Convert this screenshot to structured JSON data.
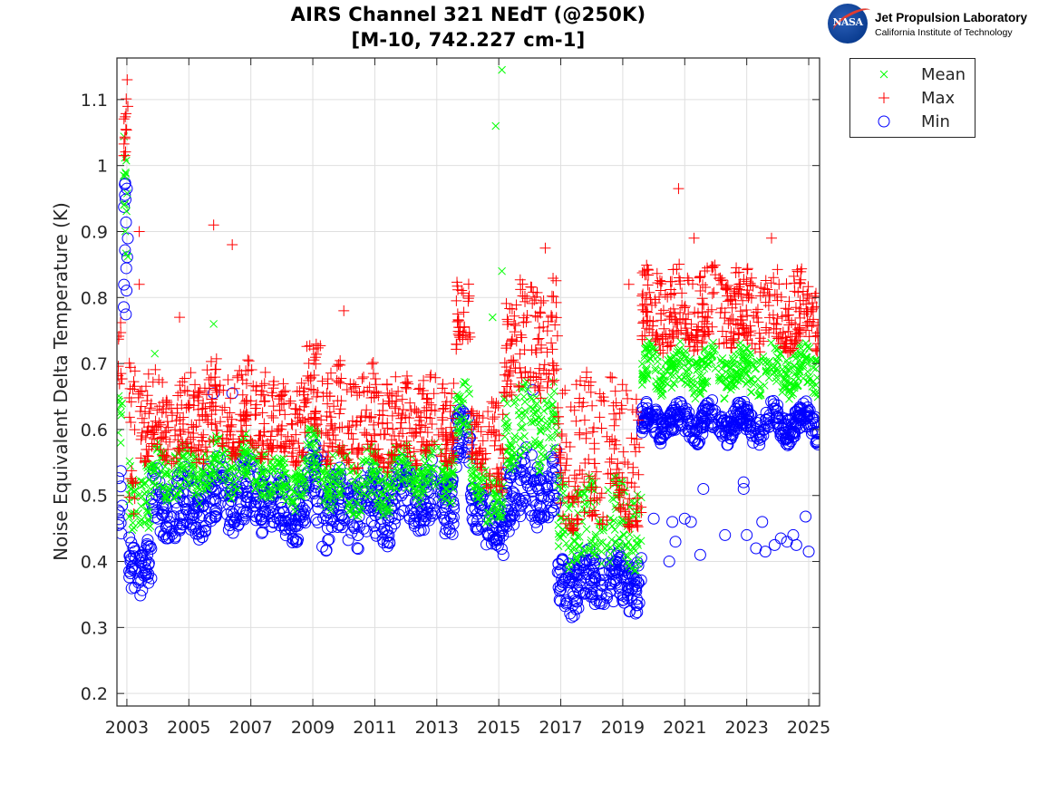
{
  "chart_data": {
    "type": "scatter",
    "title": "AIRS Channel 321 NEdT (@250K)",
    "subtitle": "[M-10, 742.227 cm-1]",
    "xlabel": "",
    "ylabel": "Noise Equivalent Delta Temperature (K)",
    "xlim": [
      2002.68,
      2025.35
    ],
    "ylim": [
      0.181,
      1.163
    ],
    "grid": true,
    "legend_position": "outside-top-right",
    "x_ticks": [
      2003,
      2005,
      2007,
      2009,
      2011,
      2013,
      2015,
      2017,
      2019,
      2021,
      2023,
      2025
    ],
    "x_tick_labels": [
      "2003",
      "2005",
      "2007",
      "2009",
      "2011",
      "2013",
      "2015",
      "2017",
      "2019",
      "2021",
      "2023",
      "2025"
    ],
    "y_ticks": [
      0.2,
      0.3,
      0.4,
      0.5,
      0.6,
      0.7,
      0.8,
      0.9,
      1.0,
      1.1
    ],
    "y_tick_labels": [
      "0.2",
      "0.3",
      "0.4",
      "0.5",
      "0.6",
      "0.7",
      "0.8",
      "0.9",
      "1",
      "1.1"
    ],
    "series": [
      {
        "name": "Mean",
        "marker": "x",
        "color": "#00ff00"
      },
      {
        "name": "Max",
        "marker": "+",
        "color": "#ff0000"
      },
      {
        "name": "Min",
        "marker": "o",
        "color": "#0000ff"
      }
    ],
    "segments": [
      {
        "x0": 2002.7,
        "x1": 2002.85,
        "mean": [
          0.55,
          0.65
        ],
        "max": [
          0.65,
          0.75
        ],
        "min": [
          0.4,
          0.55
        ]
      },
      {
        "x0": 2002.85,
        "x1": 2003.05,
        "mean": [
          0.85,
          1.03
        ],
        "max": [
          1.0,
          1.15
        ],
        "min": [
          0.74,
          0.97
        ]
      },
      {
        "x0": 2003.05,
        "x1": 2003.35,
        "mean": [
          0.45,
          0.55
        ],
        "max": [
          0.48,
          0.7
        ],
        "min": [
          0.36,
          0.44
        ]
      },
      {
        "x0": 2003.35,
        "x1": 2003.8,
        "mean": [
          0.44,
          0.56
        ],
        "max": [
          0.55,
          0.68
        ],
        "min": [
          0.36,
          0.43
        ]
      },
      {
        "x0": 2003.8,
        "x1": 2005.5,
        "mean": [
          0.5,
          0.57
        ],
        "max": [
          0.56,
          0.68
        ],
        "min": [
          0.44,
          0.53
        ]
      },
      {
        "x0": 2005.5,
        "x1": 2007.5,
        "mean": [
          0.51,
          0.58
        ],
        "max": [
          0.57,
          0.7
        ],
        "min": [
          0.45,
          0.55
        ]
      },
      {
        "x0": 2007.5,
        "x1": 2008.8,
        "mean": [
          0.49,
          0.55
        ],
        "max": [
          0.56,
          0.67
        ],
        "min": [
          0.44,
          0.52
        ]
      },
      {
        "x0": 2008.8,
        "x1": 2009.3,
        "mean": [
          0.52,
          0.6
        ],
        "max": [
          0.6,
          0.74
        ],
        "min": [
          0.46,
          0.58
        ]
      },
      {
        "x0": 2009.3,
        "x1": 2011.5,
        "mean": [
          0.48,
          0.56
        ],
        "max": [
          0.55,
          0.69
        ],
        "min": [
          0.43,
          0.53
        ]
      },
      {
        "x0": 2011.5,
        "x1": 2013.6,
        "mean": [
          0.5,
          0.57
        ],
        "max": [
          0.56,
          0.68
        ],
        "min": [
          0.45,
          0.54
        ]
      },
      {
        "x0": 2013.6,
        "x1": 2014.1,
        "mean": [
          0.58,
          0.66
        ],
        "max": [
          0.72,
          0.82
        ],
        "min": [
          0.54,
          0.62
        ]
      },
      {
        "x0": 2014.1,
        "x1": 2014.6,
        "mean": [
          0.5,
          0.56
        ],
        "max": [
          0.55,
          0.64
        ],
        "min": [
          0.46,
          0.52
        ]
      },
      {
        "x0": 2014.6,
        "x1": 2015.15,
        "mean": [
          0.45,
          0.52
        ],
        "max": [
          0.5,
          0.63
        ],
        "min": [
          0.41,
          0.47
        ]
      },
      {
        "x0": 2015.15,
        "x1": 2016.9,
        "mean": [
          0.55,
          0.66
        ],
        "max": [
          0.66,
          0.82
        ],
        "min": [
          0.46,
          0.56
        ]
      },
      {
        "x0": 2016.9,
        "x1": 2019.6,
        "mean": [
          0.4,
          0.52
        ],
        "max": [
          0.46,
          0.68
        ],
        "min": [
          0.33,
          0.41
        ]
      },
      {
        "x0": 2019.6,
        "x1": 2025.35,
        "mean": [
          0.66,
          0.72
        ],
        "max": [
          0.73,
          0.84
        ],
        "min": [
          0.59,
          0.63
        ]
      }
    ],
    "outliers": {
      "mean": [
        [
          2014.9,
          1.06
        ],
        [
          2015.1,
          1.145
        ],
        [
          2015.1,
          0.84
        ],
        [
          2014.8,
          0.77
        ],
        [
          2003.9,
          0.715
        ],
        [
          2005.8,
          0.76
        ]
      ],
      "max": [
        [
          2003.4,
          0.9
        ],
        [
          2003.4,
          0.82
        ],
        [
          2005.8,
          0.91
        ],
        [
          2006.4,
          0.88
        ],
        [
          2010.0,
          0.78
        ],
        [
          2004.7,
          0.77
        ],
        [
          2016.5,
          0.875
        ],
        [
          2019.2,
          0.82
        ],
        [
          2020.8,
          0.965
        ],
        [
          2021.3,
          0.89
        ],
        [
          2023.8,
          0.89
        ]
      ],
      "min": [
        [
          2003.0,
          0.965
        ],
        [
          2005.8,
          0.655
        ],
        [
          2006.4,
          0.655
        ],
        [
          2007.0,
          0.555
        ],
        [
          2016.1,
          0.66
        ],
        [
          2020.0,
          0.465
        ],
        [
          2020.6,
          0.46
        ],
        [
          2020.7,
          0.43
        ],
        [
          2021.0,
          0.465
        ],
        [
          2021.2,
          0.46
        ],
        [
          2021.5,
          0.41
        ],
        [
          2021.6,
          0.51
        ],
        [
          2022.3,
          0.44
        ],
        [
          2022.9,
          0.52
        ],
        [
          2022.9,
          0.51
        ],
        [
          2023.0,
          0.44
        ],
        [
          2023.3,
          0.42
        ],
        [
          2023.5,
          0.46
        ],
        [
          2023.6,
          0.415
        ],
        [
          2023.9,
          0.425
        ],
        [
          2024.1,
          0.435
        ],
        [
          2024.3,
          0.43
        ],
        [
          2024.5,
          0.44
        ],
        [
          2024.6,
          0.425
        ],
        [
          2024.9,
          0.468
        ],
        [
          2025.0,
          0.415
        ],
        [
          2020.5,
          0.4
        ]
      ]
    }
  },
  "legend": {
    "items": [
      {
        "label": "Mean",
        "marker": "x",
        "color": "#00ff00"
      },
      {
        "label": "Max",
        "marker": "+",
        "color": "#ff0000"
      },
      {
        "label": "Min",
        "marker": "o",
        "color": "#0000ff"
      }
    ]
  },
  "logo": {
    "badge_text": "NASA",
    "line1": "Jet Propulsion Laboratory",
    "line2": "California Institute of Technology"
  }
}
